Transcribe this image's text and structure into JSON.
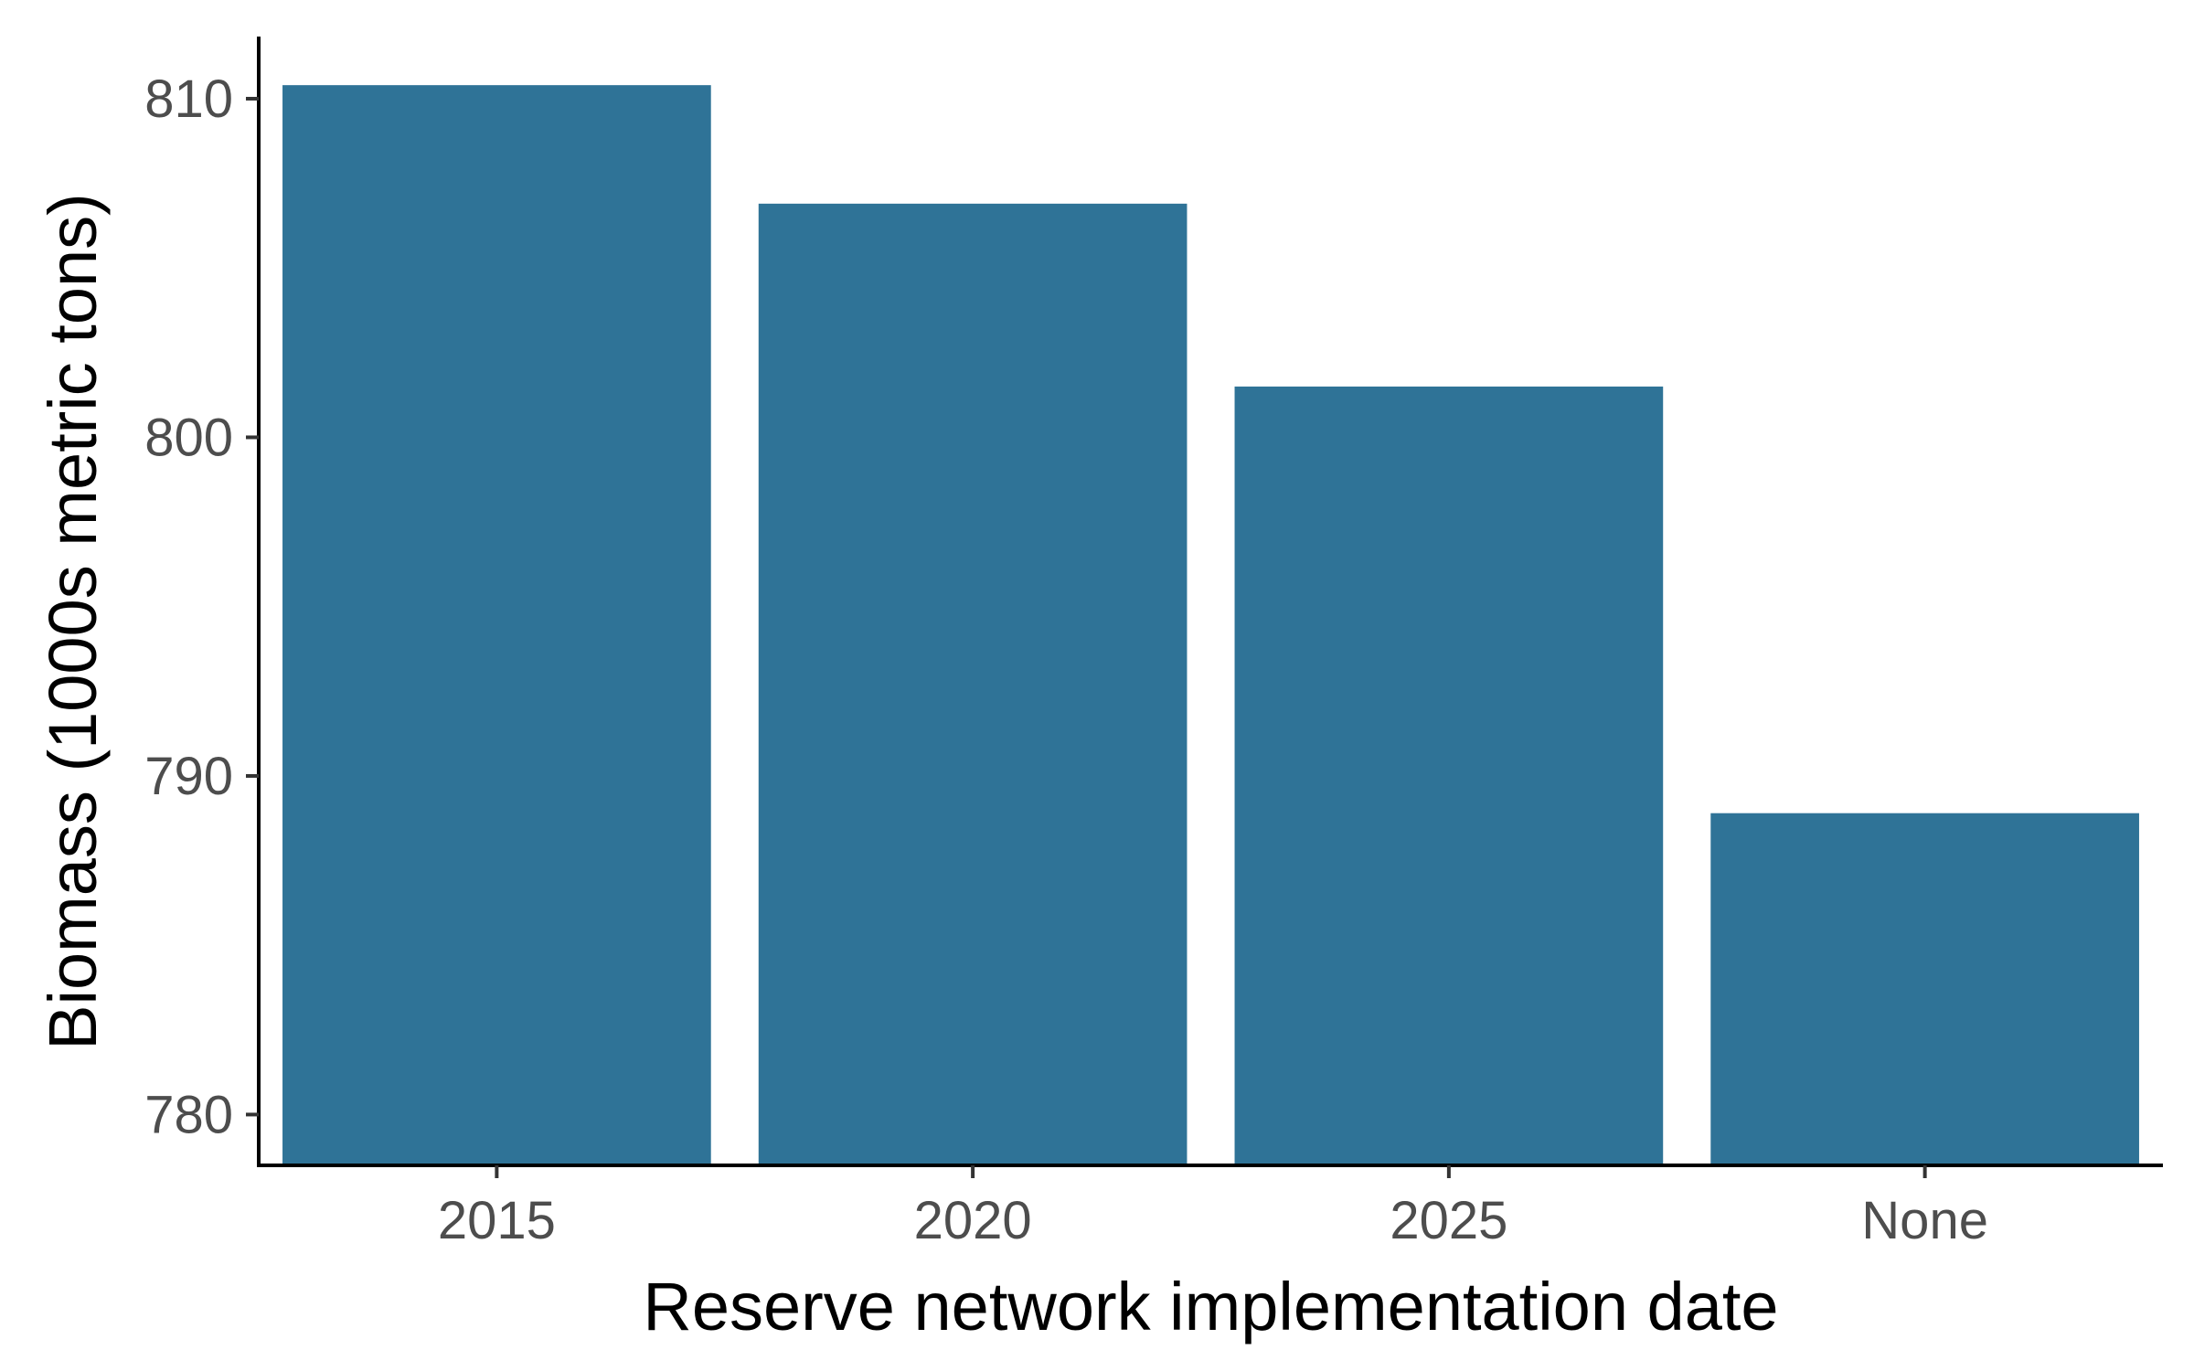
{
  "chart_data": {
    "type": "bar",
    "title": "",
    "xlabel": "Reserve network implementation date",
    "ylabel": "Biomass (1000s metric tons)",
    "categories": [
      "2015",
      "2020",
      "2025",
      "None"
    ],
    "values": [
      810.4,
      806.9,
      801.5,
      788.9
    ],
    "ylim": [
      778.5,
      811.7
    ],
    "yticks": [
      780,
      790,
      800,
      810
    ],
    "ytick_labels": [
      "780",
      "790",
      "800",
      "810"
    ],
    "bar_color": "#2f7397",
    "grid": false,
    "legend": "none"
  }
}
